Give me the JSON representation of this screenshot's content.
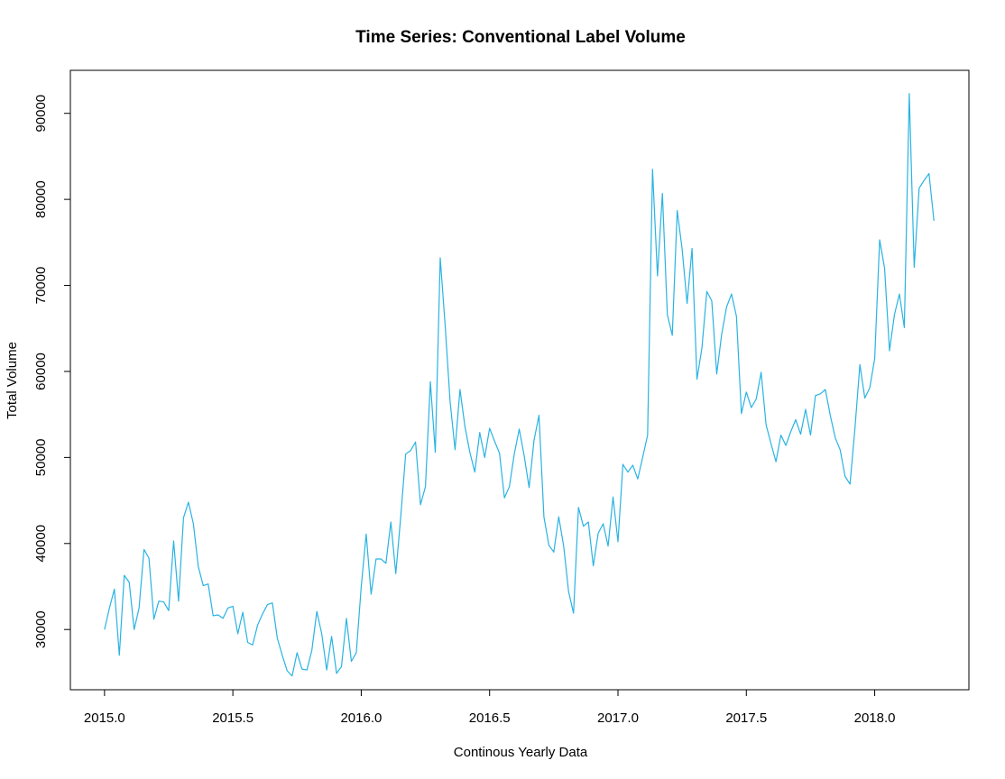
{
  "chart_data": {
    "type": "line",
    "title": "Time Series: Conventional Label Volume",
    "xlabel": "Continous Yearly Data",
    "ylabel": "Total Volume",
    "x_ticks": [
      2015.0,
      2015.5,
      2016.0,
      2016.5,
      2017.0,
      2017.5,
      2018.0
    ],
    "x_tick_labels": [
      "2015.0",
      "2015.5",
      "2016.0",
      "2016.5",
      "2017.0",
      "2017.5",
      "2018.0"
    ],
    "y_ticks": [
      30000,
      40000,
      50000,
      60000,
      70000,
      80000,
      90000
    ],
    "y_tick_labels": [
      "30000",
      "40000",
      "50000",
      "60000",
      "70000",
      "80000",
      "90000"
    ],
    "xlim": [
      2014.867,
      2018.367
    ],
    "ylim": [
      23000,
      95000
    ],
    "grid": false,
    "series": [
      {
        "color": "#29b3e3",
        "x_start": 2015.0,
        "x_step": 0.019231,
        "values": [
          30000,
          32500,
          34700,
          27000,
          36300,
          35500,
          30000,
          32500,
          39300,
          38300,
          31200,
          33300,
          33200,
          32200,
          40300,
          33300,
          43000,
          44800,
          42300,
          37300,
          35100,
          35300,
          31600,
          31700,
          31300,
          32500,
          32700,
          29500,
          32000,
          28500,
          28200,
          30500,
          31800,
          32900,
          33100,
          29000,
          27000,
          25200,
          24600,
          27300,
          25400,
          25300,
          27600,
          32100,
          29500,
          25300,
          29200,
          24900,
          25700,
          31300,
          26300,
          27300,
          35000,
          41100,
          34100,
          38200,
          38200,
          37700,
          42500,
          36500,
          43100,
          50400,
          50800,
          51800,
          44500,
          46600,
          58800,
          50600,
          73200,
          65300,
          56500,
          50900,
          57900,
          53600,
          50600,
          48300,
          52900,
          50000,
          53400,
          51900,
          50500,
          45300,
          46600,
          50400,
          53300,
          50200,
          46500,
          52000,
          54900,
          43100,
          39800,
          39000,
          43100,
          39700,
          34400,
          31900,
          44200,
          42000,
          42500,
          37400,
          41200,
          42300,
          39700,
          45400,
          40200,
          49200,
          48300,
          49100,
          47500,
          50000,
          52600,
          83500,
          71100,
          80700,
          66600,
          64200,
          78700,
          74200,
          67900,
          74300,
          59100,
          62700,
          69300,
          68200,
          59700,
          64300,
          67500,
          69000,
          66400,
          55100,
          57600,
          55800,
          56800,
          59900,
          53800,
          51600,
          49500,
          52600,
          51400,
          53000,
          54400,
          52700,
          55600,
          52600,
          57200,
          57400,
          57900,
          54900,
          52300,
          50900,
          47800,
          46900,
          53400,
          60800,
          56900,
          58100,
          61500,
          75300,
          72000,
          62400,
          66600,
          69000,
          65100,
          92300,
          72100,
          81300,
          82200,
          83000,
          77500
        ]
      }
    ]
  }
}
